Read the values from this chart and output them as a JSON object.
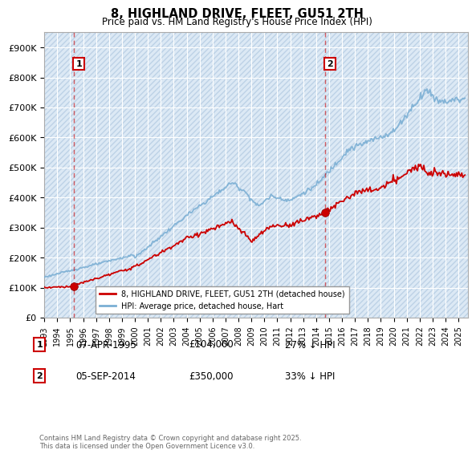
{
  "title": "8, HIGHLAND DRIVE, FLEET, GU51 2TH",
  "subtitle": "Price paid vs. HM Land Registry's House Price Index (HPI)",
  "xlim_start": 1993.0,
  "xlim_end": 2025.75,
  "ylim": [
    0,
    950000
  ],
  "yticks": [
    0,
    100000,
    200000,
    300000,
    400000,
    500000,
    600000,
    700000,
    800000,
    900000
  ],
  "ytick_labels": [
    "£0",
    "£100K",
    "£200K",
    "£300K",
    "£400K",
    "£500K",
    "£600K",
    "£700K",
    "£800K",
    "£900K"
  ],
  "xticks": [
    1993,
    1994,
    1995,
    1996,
    1997,
    1998,
    1999,
    2000,
    2001,
    2002,
    2003,
    2004,
    2005,
    2006,
    2007,
    2008,
    2009,
    2010,
    2011,
    2012,
    2013,
    2014,
    2015,
    2016,
    2017,
    2018,
    2019,
    2020,
    2021,
    2022,
    2023,
    2024,
    2025
  ],
  "hpi_color": "#7bafd4",
  "price_color": "#cc0000",
  "marker1_x": 1995.27,
  "marker1_y": 104000,
  "marker2_x": 2014.68,
  "marker2_y": 350000,
  "vline1_x": 1995.27,
  "vline2_x": 2014.68,
  "legend_line1": "8, HIGHLAND DRIVE, FLEET, GU51 2TH (detached house)",
  "legend_line2": "HPI: Average price, detached house, Hart",
  "marker1_date": "07-APR-1995",
  "marker1_price": "£104,000",
  "marker1_hpi": "27% ↓ HPI",
  "marker2_date": "05-SEP-2014",
  "marker2_price": "£350,000",
  "marker2_hpi": "33% ↓ HPI",
  "footnote": "Contains HM Land Registry data © Crown copyright and database right 2025.\nThis data is licensed under the Open Government Licence v3.0.",
  "bg_color": "#dce9f5",
  "hatch_ec": "#b0c8e0",
  "vline1_color": "#cc0000",
  "vline2_color": "#cc0000"
}
